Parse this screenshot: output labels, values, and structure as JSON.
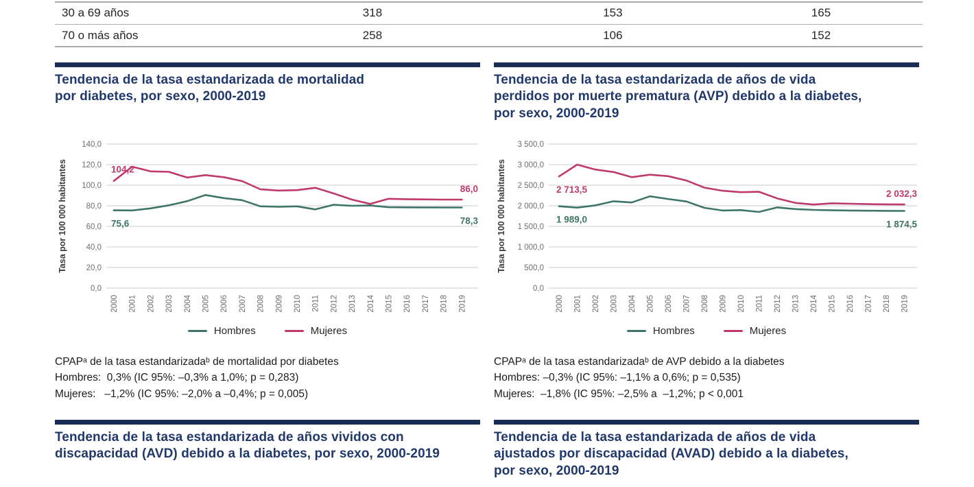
{
  "colors": {
    "navy_bar": "#1a2d55",
    "title_navy": "#21386b",
    "hombres": "#3f7568",
    "mujeres": "#bf3a6c",
    "grid": "#d8d8d8",
    "axis_text": "#6d6e71"
  },
  "table_fragment": {
    "rows": [
      {
        "label": "30 a 69 años",
        "values": [
          "318",
          "153",
          "165"
        ]
      },
      {
        "label": "70 o más años",
        "values": [
          "258",
          "106",
          "152"
        ]
      }
    ]
  },
  "legend": {
    "hombres": "Hombres",
    "mujeres": "Mujeres"
  },
  "sections": {
    "mortalidad": {
      "title": "Tendencia de la tasa estandarizada de mortalidad\npor diabetes, por sexo, 2000-2019",
      "cpap_lines": [
        "CPAPᵃ de la tasa estandarizadaᵇ de mortalidad por diabetes",
        "Hombres:  0,3% (IC 95%: –0,3% a 1,0%; p = 0,283)",
        "Mujeres:   –1,2% (IC 95%: –2,0% a –0,4%; p = 0,005)"
      ]
    },
    "avp": {
      "title": "Tendencia de la tasa estandarizada de años de vida\nperdidos por muerte prematura (AVP) debido a la diabetes,\npor sexo, 2000-2019",
      "cpap_lines": [
        "CPAPᵃ de la tasa estandarizadaᵇ de AVP debido a la diabetes",
        "Hombres: –0,3% (IC 95%: –1,1% a 0,6%; p = 0,535)",
        "Mujeres:  –1,8% (IC 95%: –2,5% a  –1,2%; p < 0,001"
      ]
    },
    "avd": {
      "title": "Tendencia de la tasa estandarizada de años vividos con\ndiscapacidad (AVD) debido a la diabetes, por sexo, 2000-2019"
    },
    "avad": {
      "title": "Tendencia de la tasa estandarizada de años de vida\najustados por discapacidad (AVAD) debido a la diabetes,\npor sexo, 2000-2019"
    }
  },
  "chart_data": [
    {
      "type": "line",
      "title": "Tendencia de la tasa estandarizada de mortalidad por diabetes, por sexo, 2000-2019",
      "ylabel": "Tasa por 100 000 habitantes",
      "xlabel": "",
      "x": [
        2000,
        2001,
        2002,
        2003,
        2004,
        2005,
        2006,
        2007,
        2008,
        2009,
        2010,
        2011,
        2012,
        2013,
        2014,
        2015,
        2016,
        2017,
        2018,
        2019
      ],
      "ylim": [
        0,
        140
      ],
      "ytick_labels": [
        "0,0",
        "20,0",
        "40,0",
        "60,0",
        "80,0",
        "100,0",
        "120,0",
        "140,0"
      ],
      "grid": true,
      "legend_position": "bottom",
      "series": [
        {
          "name": "Hombres",
          "color": "#3f7568",
          "values": [
            75.6,
            75.5,
            77.5,
            80.5,
            84.5,
            90.5,
            87.5,
            85.5,
            79.5,
            79.0,
            79.5,
            76.5,
            81.0,
            80.0,
            80.3,
            78.6,
            78.5,
            78.4,
            78.3,
            78.3
          ],
          "first_label": "75,6",
          "first_label_pos": "below",
          "last_label": "78,3",
          "last_label_pos": "below"
        },
        {
          "name": "Mujeres",
          "color": "#bf3a6c",
          "values": [
            104.2,
            118.0,
            113.5,
            113.0,
            107.5,
            109.8,
            107.8,
            104.0,
            96.0,
            94.8,
            95.2,
            97.5,
            92.0,
            86.0,
            81.8,
            86.8,
            86.4,
            86.2,
            86.0,
            86.0
          ],
          "first_label": "104,2",
          "first_label_pos": "above",
          "last_label": "86,0",
          "last_label_pos": "above"
        }
      ]
    },
    {
      "type": "line",
      "title": "Tendencia de la tasa estandarizada de años de vida perdidos por muerte prematura (AVP) debido a la diabetes, por sexo, 2000-2019",
      "ylabel": "Tasa por 100 000 habitantes",
      "xlabel": "",
      "x": [
        2000,
        2001,
        2002,
        2003,
        2004,
        2005,
        2006,
        2007,
        2008,
        2009,
        2010,
        2011,
        2012,
        2013,
        2014,
        2015,
        2016,
        2017,
        2018,
        2019
      ],
      "ylim": [
        0,
        3500
      ],
      "ytick_labels": [
        "0,0",
        "500,0",
        "1 000,0",
        "1 500,0",
        "2 000,0",
        "2 500,0",
        "3 000,0",
        "3 500,0"
      ],
      "grid": true,
      "legend_position": "bottom",
      "series": [
        {
          "name": "Hombres",
          "color": "#3f7568",
          "values": [
            1989.0,
            1955,
            2010,
            2110,
            2080,
            2230,
            2165,
            2105,
            1950,
            1885,
            1895,
            1850,
            1960,
            1920,
            1900,
            1890,
            1885,
            1880,
            1876,
            1874.5
          ],
          "first_label": "1 989,0",
          "first_label_pos": "below",
          "last_label": "1 874,5",
          "last_label_pos": "below"
        },
        {
          "name": "Mujeres",
          "color": "#bf3a6c",
          "values": [
            2713.5,
            3000,
            2880,
            2820,
            2695,
            2755,
            2720,
            2615,
            2440,
            2365,
            2330,
            2340,
            2180,
            2070,
            2030,
            2060,
            2050,
            2040,
            2035,
            2032.3
          ],
          "first_label": "2 713,5",
          "first_label_pos": "below",
          "last_label": "2 032,3",
          "last_label_pos": "above"
        }
      ]
    }
  ]
}
